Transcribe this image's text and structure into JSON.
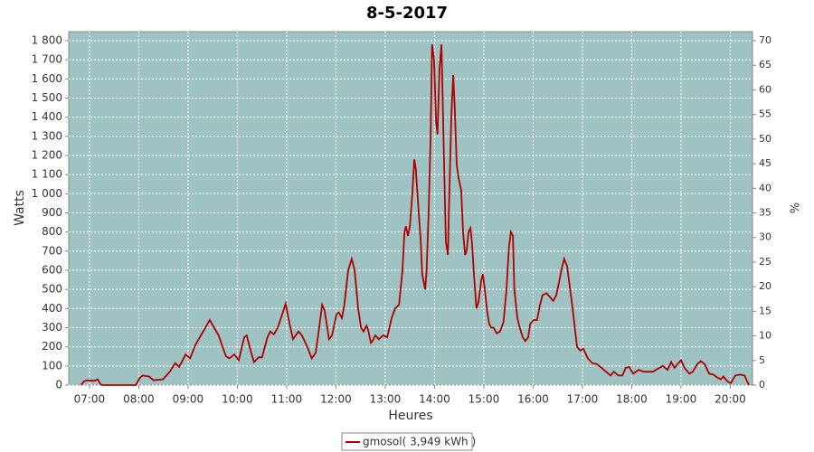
{
  "chart_data": {
    "type": "line",
    "title": "8-5-2017",
    "y_label": "Watts",
    "y2_label": "%",
    "x_label": "Heures",
    "grid": true,
    "legend": "bottom",
    "background": "#9fc2c2",
    "xlim": [
      6.58,
      20.45
    ],
    "xticks": [
      {
        "value": 7,
        "label": "07:00"
      },
      {
        "value": 8,
        "label": "08:00"
      },
      {
        "value": 9,
        "label": "09:00"
      },
      {
        "value": 10,
        "label": "10:00"
      },
      {
        "value": 11,
        "label": "11:00"
      },
      {
        "value": 12,
        "label": "12:00"
      },
      {
        "value": 13,
        "label": "13:00"
      },
      {
        "value": 14,
        "label": "14:00"
      },
      {
        "value": 15,
        "label": "15:00"
      },
      {
        "value": 16,
        "label": "16:00"
      },
      {
        "value": 17,
        "label": "17:00"
      },
      {
        "value": 18,
        "label": "18:00"
      },
      {
        "value": 19,
        "label": "19:00"
      },
      {
        "value": 20,
        "label": "20:00"
      }
    ],
    "ylim": [
      0,
      1847
    ],
    "yticks": [
      0,
      100,
      200,
      300,
      400,
      500,
      600,
      700,
      800,
      900,
      {
        "value": 1000,
        "label": "1 000"
      },
      {
        "value": 1100,
        "label": "1 100"
      },
      {
        "value": 1200,
        "label": "1 200"
      },
      {
        "value": 1300,
        "label": "1 300"
      },
      {
        "value": 1400,
        "label": "1 400"
      },
      {
        "value": 1500,
        "label": "1 500"
      },
      {
        "value": 1600,
        "label": "1 600"
      },
      {
        "value": 1700,
        "label": "1 700"
      },
      {
        "value": 1800,
        "label": "1 800"
      }
    ],
    "y2lim": [
      0,
      71.84
    ],
    "y2ticks": [
      0,
      5,
      10,
      15,
      20,
      25,
      30,
      35,
      40,
      45,
      50,
      55,
      60,
      65,
      70
    ],
    "x": [
      6.83,
      6.89,
      6.96,
      7.09,
      7.17,
      7.22,
      7.26,
      7.94,
      8.03,
      8.08,
      8.21,
      8.3,
      8.49,
      8.63,
      8.74,
      8.82,
      8.95,
      9.04,
      9.15,
      9.26,
      9.33,
      9.44,
      9.53,
      9.62,
      9.7,
      9.77,
      9.84,
      9.94,
      10.03,
      10.14,
      10.19,
      10.27,
      10.34,
      10.43,
      10.5,
      10.61,
      10.67,
      10.74,
      10.82,
      10.91,
      10.98,
      11.06,
      11.13,
      11.24,
      11.31,
      11.42,
      11.51,
      11.59,
      11.66,
      11.72,
      11.77,
      11.86,
      11.92,
      12.01,
      12.06,
      12.12,
      12.17,
      12.25,
      12.32,
      12.38,
      12.45,
      12.51,
      12.56,
      12.62,
      12.65,
      12.71,
      12.74,
      12.8,
      12.87,
      12.96,
      13.04,
      13.13,
      13.2,
      13.28,
      13.35,
      13.39,
      13.42,
      13.46,
      13.5,
      13.55,
      13.59,
      13.62,
      13.68,
      13.72,
      13.75,
      13.81,
      13.84,
      13.88,
      13.92,
      13.95,
      13.99,
      14.03,
      14.06,
      14.1,
      14.14,
      14.16,
      14.19,
      14.23,
      14.27,
      14.3,
      14.34,
      14.38,
      14.41,
      14.45,
      14.49,
      14.54,
      14.58,
      14.62,
      14.65,
      14.69,
      14.73,
      14.76,
      14.8,
      14.85,
      14.89,
      14.95,
      14.98,
      15.02,
      15.07,
      15.11,
      15.15,
      15.2,
      15.26,
      15.33,
      15.4,
      15.46,
      15.51,
      15.55,
      15.59,
      15.62,
      15.68,
      15.73,
      15.79,
      15.84,
      15.9,
      15.94,
      16.01,
      16.08,
      16.14,
      16.19,
      16.27,
      16.34,
      16.41,
      16.47,
      16.52,
      16.58,
      16.63,
      16.69,
      16.74,
      16.8,
      16.85,
      16.89,
      16.96,
      17.02,
      17.11,
      17.2,
      17.29,
      17.39,
      17.48,
      17.57,
      17.64,
      17.73,
      17.81,
      17.88,
      17.95,
      18.03,
      18.14,
      18.25,
      18.43,
      18.56,
      18.63,
      18.73,
      18.8,
      18.87,
      18.93,
      19.0,
      19.07,
      19.17,
      19.24,
      19.33,
      19.4,
      19.48,
      19.57,
      19.66,
      19.73,
      19.81,
      19.86,
      19.94,
      20.01,
      20.1,
      20.19,
      20.29,
      20.34,
      20.38
    ],
    "series": [
      {
        "name": "gmosol( 3,949 kWh )",
        "color": "#b00000",
        "values": [
          0,
          20,
          25,
          22,
          30,
          5,
          0,
          0,
          40,
          50,
          45,
          25,
          30,
          70,
          115,
          95,
          160,
          140,
          210,
          260,
          290,
          340,
          300,
          260,
          200,
          150,
          140,
          160,
          130,
          250,
          260,
          180,
          120,
          145,
          145,
          250,
          280,
          265,
          300,
          370,
          425,
          320,
          240,
          280,
          260,
          200,
          140,
          170,
          300,
          420,
          390,
          240,
          260,
          370,
          380,
          350,
          420,
          600,
          660,
          600,
          400,
          300,
          280,
          310,
          290,
          220,
          230,
          260,
          240,
          260,
          250,
          350,
          400,
          420,
          600,
          800,
          830,
          780,
          830,
          1000,
          1180,
          1130,
          900,
          750,
          580,
          500,
          600,
          900,
          1300,
          1780,
          1700,
          1380,
          1310,
          1650,
          1780,
          1550,
          1200,
          750,
          680,
          1000,
          1400,
          1620,
          1450,
          1150,
          1080,
          1020,
          800,
          680,
          700,
          800,
          820,
          740,
          580,
          400,
          430,
          550,
          580,
          500,
          380,
          320,
          300,
          300,
          270,
          280,
          330,
          500,
          720,
          800,
          780,
          500,
          350,
          300,
          250,
          230,
          250,
          320,
          340,
          340,
          420,
          470,
          480,
          460,
          440,
          470,
          530,
          610,
          660,
          620,
          520,
          400,
          290,
          200,
          180,
          190,
          140,
          115,
          110,
          90,
          70,
          50,
          70,
          50,
          50,
          90,
          95,
          60,
          80,
          70,
          70,
          90,
          100,
          80,
          120,
          90,
          110,
          130,
          90,
          60,
          70,
          110,
          125,
          110,
          60,
          55,
          40,
          30,
          45,
          20,
          10,
          50,
          55,
          50,
          20,
          0
        ]
      }
    ]
  }
}
